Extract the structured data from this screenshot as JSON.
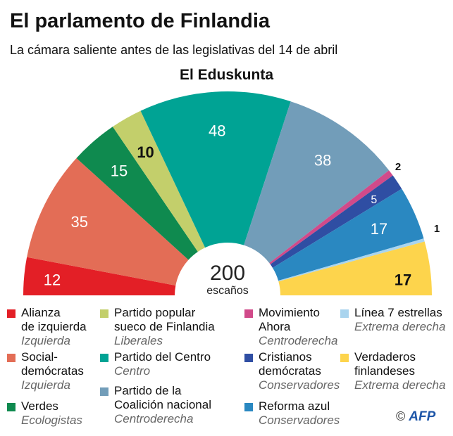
{
  "title": "El parlamento de Finlandia",
  "subtitle": "La cámara saliente antes de las legislativas del 14 de abril",
  "credit": {
    "symbol": "©",
    "brand": "AFP"
  },
  "chart_data": {
    "type": "parliament-semicircle",
    "title": "El Eduskunta",
    "total": "200",
    "total_label": "escaños",
    "series": [
      {
        "name": "Alianza de izquierda",
        "line1": "Alianza",
        "line2": "de izquierda",
        "group": "Izquierda",
        "value": 12,
        "color": "#e31f26",
        "label": "12",
        "label_color": "#ffffff"
      },
      {
        "name": "Social-demócratas",
        "line1": "Social-",
        "line2": "demócratas",
        "group": "Izquierda",
        "value": 35,
        "color": "#e36d56",
        "label": "35",
        "label_color": "#ffffff"
      },
      {
        "name": "Verdes",
        "line1": "Verdes",
        "line2": "",
        "group": "Ecologistas",
        "value": 15,
        "color": "#0f8a4f",
        "label": "15",
        "label_color": "#ffffff"
      },
      {
        "name": "Partido popular sueco de Finlandia",
        "line1": "Partido popular",
        "line2": "sueco de Finlandia",
        "group": "Liberales",
        "value": 10,
        "color": "#c3cf6b",
        "label": "10",
        "label_color": "#111111"
      },
      {
        "name": "Partido del Centro",
        "line1": "Partido del Centro",
        "line2": "",
        "group": "Centro",
        "value": 48,
        "color": "#00a394",
        "label": "48",
        "label_color": "#ffffff"
      },
      {
        "name": "Partido de la Coalición nacional",
        "line1": "Partido de la",
        "line2": "Coalición nacional",
        "group": "Centroderecha",
        "value": 38,
        "color": "#729db9",
        "label": "38",
        "label_color": "#ffffff"
      },
      {
        "name": "Movimiento Ahora",
        "line1": "Movimiento",
        "line2": "Ahora",
        "group": "Centroderecha",
        "value": 2,
        "color": "#d14a8a",
        "label": "2",
        "label_color": "#111111"
      },
      {
        "name": "Cristianos demócratas",
        "line1": "Cristianos",
        "line2": "demócratas",
        "group": "Conservadores",
        "value": 5,
        "color": "#2f4ea3",
        "label": "5",
        "label_color": "#ffffff"
      },
      {
        "name": "Reforma azul",
        "line1": "Reforma azul",
        "line2": "",
        "group": "Conservadores",
        "value": 17,
        "color": "#2a88c1",
        "label": "17",
        "label_color": "#ffffff"
      },
      {
        "name": "Línea 7 estrellas",
        "line1": "Línea 7 estrellas",
        "line2": "",
        "group": "Extrema derecha",
        "value": 1,
        "color": "#a9d4ee",
        "label": "1",
        "label_color": "#111111"
      },
      {
        "name": "Verdaderos finlandeses",
        "line1": "Verdaderos",
        "line2": "finlandeses",
        "group": "Extrema derecha",
        "value": 17,
        "color": "#fdd44c",
        "label": "17",
        "label_color": "#111111"
      }
    ]
  }
}
